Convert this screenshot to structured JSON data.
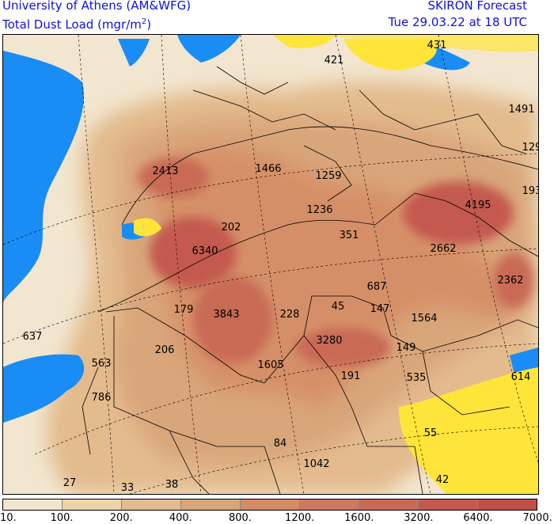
{
  "header": {
    "institution": "University of Athens (AM&WFG)",
    "product_prefix": "Total Dust Load (mgr/m",
    "product_sup": "2",
    "product_suffix": ")",
    "forecast_name": "SKIRON Forecast",
    "valid_time": "Tue 29.03.22 at 18 UTC"
  },
  "map_labels": [
    {
      "text": "421"
    },
    {
      "text": "431"
    },
    {
      "text": "1491"
    },
    {
      "text": "129"
    },
    {
      "text": "193"
    },
    {
      "text": "2413"
    },
    {
      "text": "1466"
    },
    {
      "text": "1259"
    },
    {
      "text": "1236"
    },
    {
      "text": "4195"
    },
    {
      "text": "202"
    },
    {
      "text": "351"
    },
    {
      "text": "6340"
    },
    {
      "text": "2662"
    },
    {
      "text": "2362"
    },
    {
      "text": "687"
    },
    {
      "text": "179"
    },
    {
      "text": "3843"
    },
    {
      "text": "228"
    },
    {
      "text": "45"
    },
    {
      "text": "147"
    },
    {
      "text": "1564"
    },
    {
      "text": "637"
    },
    {
      "text": "206"
    },
    {
      "text": "3280"
    },
    {
      "text": "149"
    },
    {
      "text": "563"
    },
    {
      "text": "1605"
    },
    {
      "text": "191"
    },
    {
      "text": "535"
    },
    {
      "text": "614"
    },
    {
      "text": "786"
    },
    {
      "text": "55"
    },
    {
      "text": "84"
    },
    {
      "text": "1042"
    },
    {
      "text": "27"
    },
    {
      "text": "33"
    },
    {
      "text": "38"
    },
    {
      "text": "42"
    }
  ],
  "colorbar": {
    "colors": [
      "#f2e6d0",
      "#ecd3a9",
      "#e3bb8d",
      "#d9a57a",
      "#d58c65",
      "#cf7860",
      "#c96a55",
      "#c45a4f",
      "#c04f48"
    ],
    "ticks": [
      "10.",
      "100.",
      "200.",
      "400.",
      "800.",
      "1200.",
      "1600.",
      "3200.",
      "6400.",
      "7000."
    ]
  },
  "colors": {
    "sea": "#1a8cf5",
    "no_dust": "#ffe53a",
    "header_text": "#1010e0"
  }
}
